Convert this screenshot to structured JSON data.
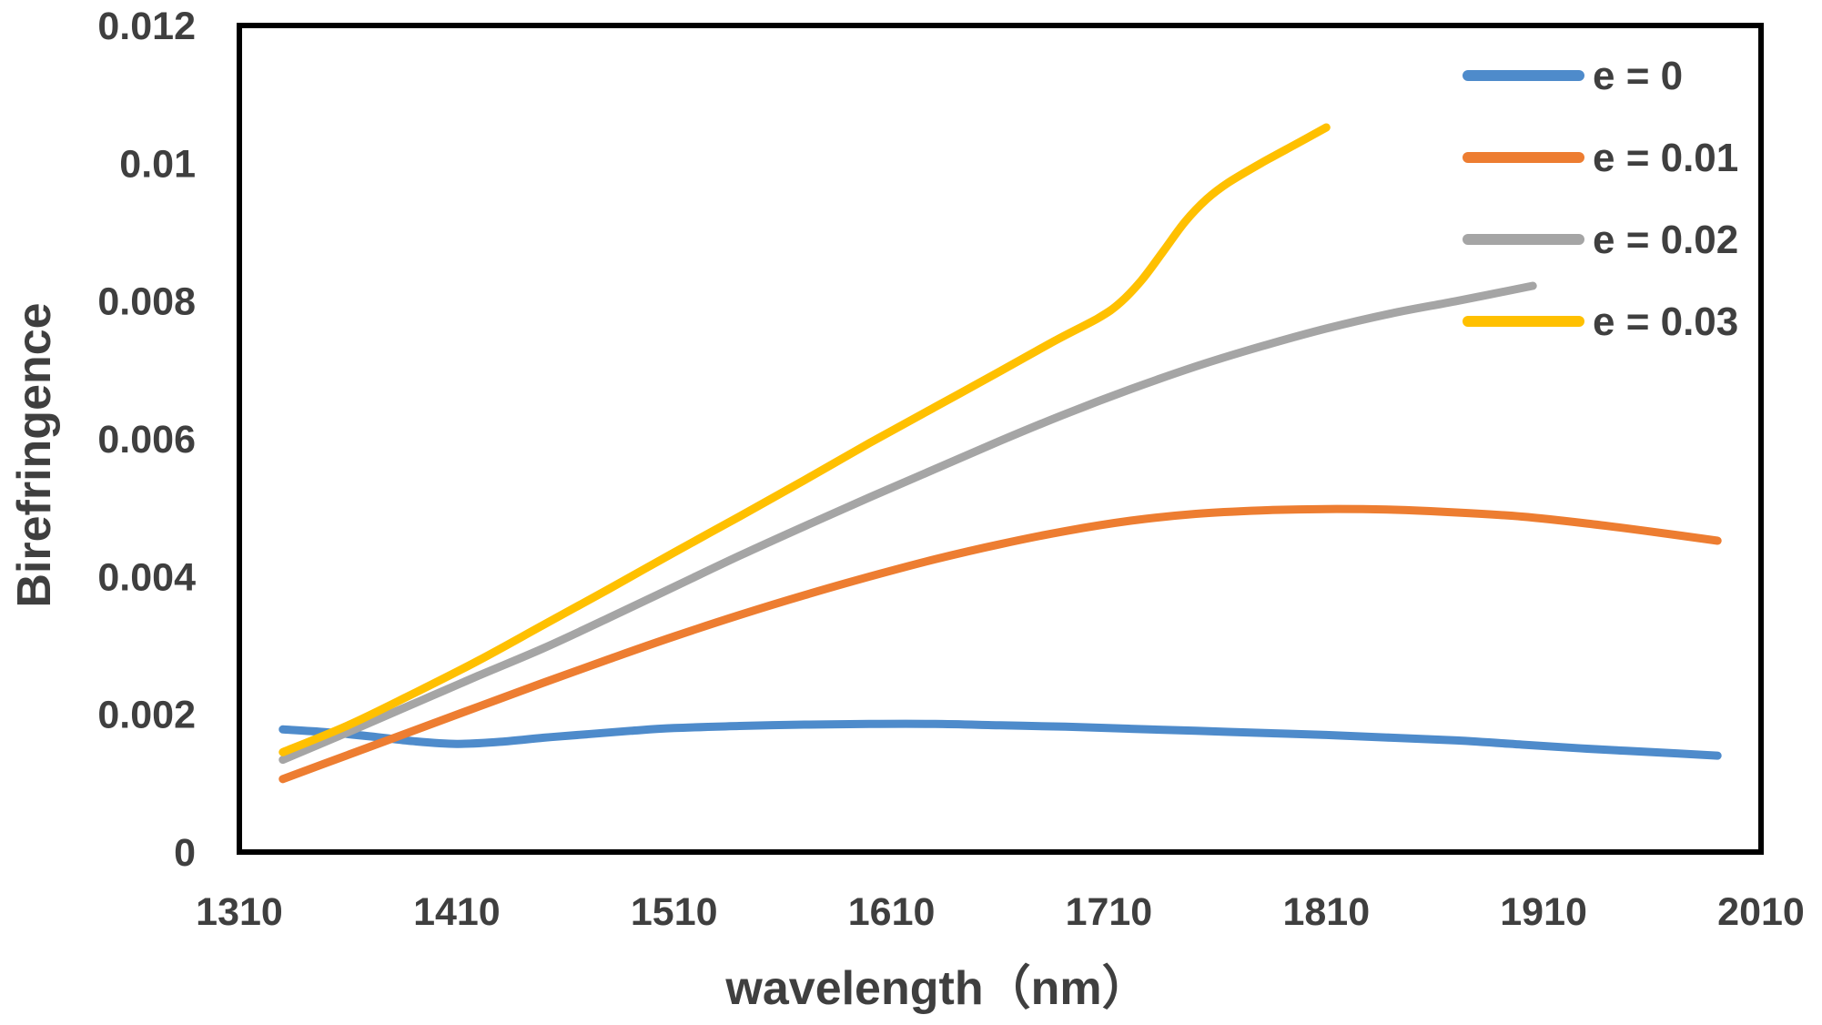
{
  "figure": {
    "background": "#ffffff",
    "text_color": "#3F3F3F",
    "plot_border_color": "#000000"
  },
  "chart_data": {
    "type": "line",
    "title": "",
    "xlabel": "wavelength（nm）",
    "ylabel": "Birefringence",
    "xlim": [
      1310,
      2010
    ],
    "ylim": [
      0,
      0.012
    ],
    "x_ticks": [
      1310,
      1410,
      1510,
      1610,
      1710,
      1810,
      1910,
      2010
    ],
    "y_ticks": [
      0,
      0.002,
      0.004,
      0.006,
      0.008,
      0.01,
      0.012
    ],
    "y_tick_labels": [
      "0",
      "0.002",
      "0.004",
      "0.006",
      "0.008",
      "0.01",
      "0.012"
    ],
    "grid": false,
    "legend_position": "top-right-inside",
    "legend_entries": [
      "e = 0",
      "e = 0.01",
      "e = 0.02",
      "e = 0.03"
    ],
    "series": [
      {
        "name": "e = 0",
        "color": "#4E8BCB",
        "points": [
          [
            1330,
            0.00178
          ],
          [
            1350,
            0.00174
          ],
          [
            1370,
            0.00168
          ],
          [
            1390,
            0.00161
          ],
          [
            1410,
            0.00157
          ],
          [
            1430,
            0.0016
          ],
          [
            1450,
            0.00166
          ],
          [
            1470,
            0.00171
          ],
          [
            1490,
            0.00176
          ],
          [
            1510,
            0.0018
          ],
          [
            1540,
            0.00183
          ],
          [
            1570,
            0.00185
          ],
          [
            1600,
            0.00186
          ],
          [
            1630,
            0.00186
          ],
          [
            1660,
            0.00184
          ],
          [
            1690,
            0.00182
          ],
          [
            1720,
            0.00179
          ],
          [
            1750,
            0.00176
          ],
          [
            1780,
            0.00173
          ],
          [
            1810,
            0.0017
          ],
          [
            1840,
            0.00166
          ],
          [
            1870,
            0.00162
          ],
          [
            1900,
            0.00156
          ],
          [
            1930,
            0.0015
          ],
          [
            1960,
            0.00145
          ],
          [
            1990,
            0.0014
          ]
        ]
      },
      {
        "name": "e = 0.01",
        "color": "#ED7D31",
        "points": [
          [
            1330,
            0.00106
          ],
          [
            1360,
            0.00141
          ],
          [
            1390,
            0.00176
          ],
          [
            1420,
            0.00211
          ],
          [
            1450,
            0.00246
          ],
          [
            1480,
            0.0028
          ],
          [
            1510,
            0.00313
          ],
          [
            1540,
            0.00344
          ],
          [
            1570,
            0.00373
          ],
          [
            1600,
            0.004
          ],
          [
            1630,
            0.00425
          ],
          [
            1660,
            0.00447
          ],
          [
            1690,
            0.00466
          ],
          [
            1720,
            0.00481
          ],
          [
            1750,
            0.00491
          ],
          [
            1780,
            0.00496
          ],
          [
            1810,
            0.00498
          ],
          [
            1840,
            0.00497
          ],
          [
            1870,
            0.00493
          ],
          [
            1900,
            0.00487
          ],
          [
            1930,
            0.00477
          ],
          [
            1960,
            0.00465
          ],
          [
            1990,
            0.00452
          ]
        ]
      },
      {
        "name": "e = 0.02",
        "color": "#A5A5A5",
        "points": [
          [
            1330,
            0.00134
          ],
          [
            1360,
            0.00174
          ],
          [
            1390,
            0.00215
          ],
          [
            1420,
            0.00256
          ],
          [
            1450,
            0.00296
          ],
          [
            1480,
            0.0034
          ],
          [
            1510,
            0.00385
          ],
          [
            1540,
            0.0043
          ],
          [
            1570,
            0.00473
          ],
          [
            1600,
            0.00515
          ],
          [
            1630,
            0.00556
          ],
          [
            1660,
            0.00597
          ],
          [
            1690,
            0.00636
          ],
          [
            1720,
            0.00672
          ],
          [
            1750,
            0.00705
          ],
          [
            1780,
            0.00734
          ],
          [
            1810,
            0.0076
          ],
          [
            1840,
            0.00782
          ],
          [
            1870,
            0.008
          ],
          [
            1905,
            0.00822
          ]
        ]
      },
      {
        "name": "e = 0.03",
        "color": "#FFC000",
        "points": [
          [
            1330,
            0.00145
          ],
          [
            1360,
            0.00184
          ],
          [
            1390,
            0.0023
          ],
          [
            1420,
            0.00278
          ],
          [
            1450,
            0.0033
          ],
          [
            1480,
            0.00382
          ],
          [
            1510,
            0.00435
          ],
          [
            1540,
            0.00487
          ],
          [
            1570,
            0.0054
          ],
          [
            1600,
            0.00594
          ],
          [
            1630,
            0.00646
          ],
          [
            1660,
            0.00698
          ],
          [
            1685,
            0.00742
          ],
          [
            1705,
            0.00775
          ],
          [
            1715,
            0.00797
          ],
          [
            1725,
            0.0083
          ],
          [
            1735,
            0.00872
          ],
          [
            1745,
            0.00915
          ],
          [
            1755,
            0.00948
          ],
          [
            1765,
            0.00972
          ],
          [
            1780,
            0.01
          ],
          [
            1795,
            0.01026
          ],
          [
            1810,
            0.01052
          ]
        ]
      }
    ]
  }
}
